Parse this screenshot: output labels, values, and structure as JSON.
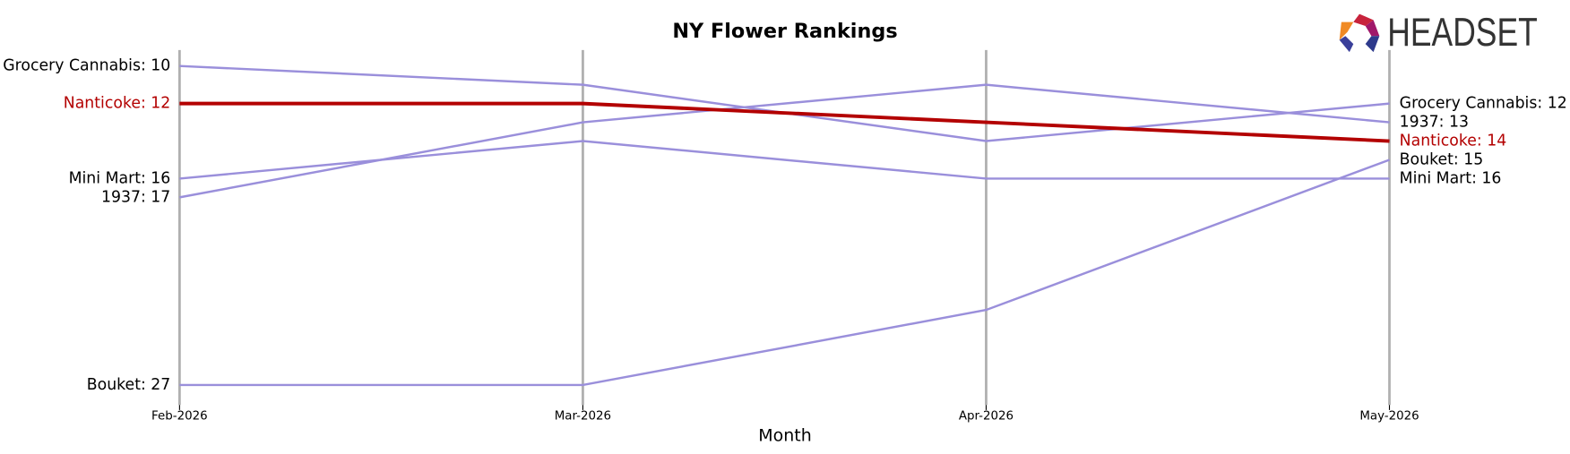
{
  "logo": {
    "text": "HEADSET"
  },
  "chart_data": {
    "type": "bump",
    "title": "NY Flower Rankings",
    "x_label": "Month",
    "categories": [
      "Feb-2026",
      "Mar-2026",
      "Apr-2026",
      "May-2026"
    ],
    "ylim": [
      10,
      27
    ],
    "y_inverted": true,
    "grid": true,
    "series": [
      {
        "color": "#9a8fdb",
        "values": [
          10,
          11,
          14,
          12
        ],
        "value_labels": [
          "Grocery Cannabis: 10",
          null,
          null,
          "Grocery Cannabis: 12"
        ]
      },
      {
        "color": "#9a8fdb",
        "values": [
          17,
          13,
          11,
          13
        ],
        "value_labels": [
          "1937: 17",
          null,
          null,
          "1937: 13"
        ]
      },
      {
        "color": "#9a8fdb",
        "values": [
          16,
          14,
          16,
          16
        ],
        "value_labels": [
          "Mini Mart: 16",
          null,
          null,
          "Mini Mart: 16"
        ]
      },
      {
        "color": "#9a8fdb",
        "values": [
          27,
          27,
          23,
          15
        ],
        "value_labels": [
          "Bouket: 27",
          null,
          null,
          "Bouket: 15"
        ]
      },
      {
        "color": "#b30000",
        "highlight": true,
        "values": [
          12,
          12,
          13,
          14
        ],
        "value_labels": [
          "Nanticoke: 12",
          null,
          null,
          "Nanticoke: 14"
        ]
      }
    ]
  }
}
